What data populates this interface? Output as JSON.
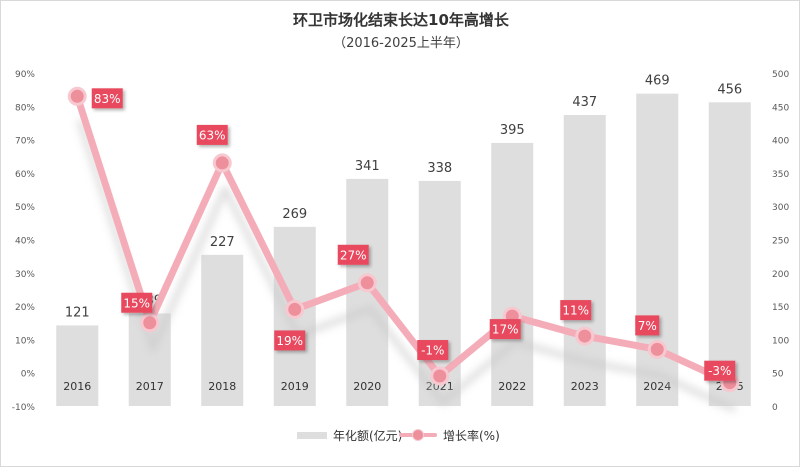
{
  "chart_data": {
    "type": "bar",
    "title": "环卫市场化结束长达10年高增长",
    "subtitle": "（2016-2025上半年）",
    "categories": [
      "2016",
      "2017",
      "2018",
      "2019",
      "2020",
      "2021",
      "2022",
      "2023",
      "2024",
      "2025"
    ],
    "series": [
      {
        "name": "年化额(亿元)",
        "type": "bar",
        "axis": "right",
        "values": [
          121,
          139,
          227,
          269,
          341,
          338,
          395,
          437,
          469,
          456
        ],
        "data_labels": [
          "121",
          "139",
          "227",
          "269",
          "341",
          "338",
          "395",
          "437",
          "469",
          "456"
        ]
      },
      {
        "name": "增长率(%)",
        "type": "line",
        "axis": "left",
        "values": [
          83,
          15,
          63,
          19,
          27,
          -1,
          17,
          11,
          7,
          -3
        ],
        "data_labels": [
          "83%",
          "15%",
          "63%",
          "19%",
          "27%",
          "-1%",
          "17%",
          "11%",
          "7%",
          "-3%"
        ]
      }
    ],
    "y_left": {
      "min": -10,
      "max": 90,
      "ticks": [
        "-10%",
        "0%",
        "10%",
        "20%",
        "30%",
        "40%",
        "50%",
        "60%",
        "70%",
        "80%",
        "90%"
      ]
    },
    "y_right": {
      "min": 0,
      "max": 500,
      "ticks": [
        "0",
        "50",
        "100",
        "150",
        "200",
        "250",
        "300",
        "350",
        "400",
        "450",
        "500"
      ]
    },
    "grid": false,
    "legend_position": "bottom",
    "colors": {
      "bar": "#dedede",
      "line": "#f4adb8",
      "marker": "#ee8f9c",
      "marker_border": "#f7c8cf",
      "label_box": "#e84a5f",
      "label_text": "#ffffff",
      "axis_text": "#595959",
      "shadow": "#c8c8c8"
    }
  }
}
